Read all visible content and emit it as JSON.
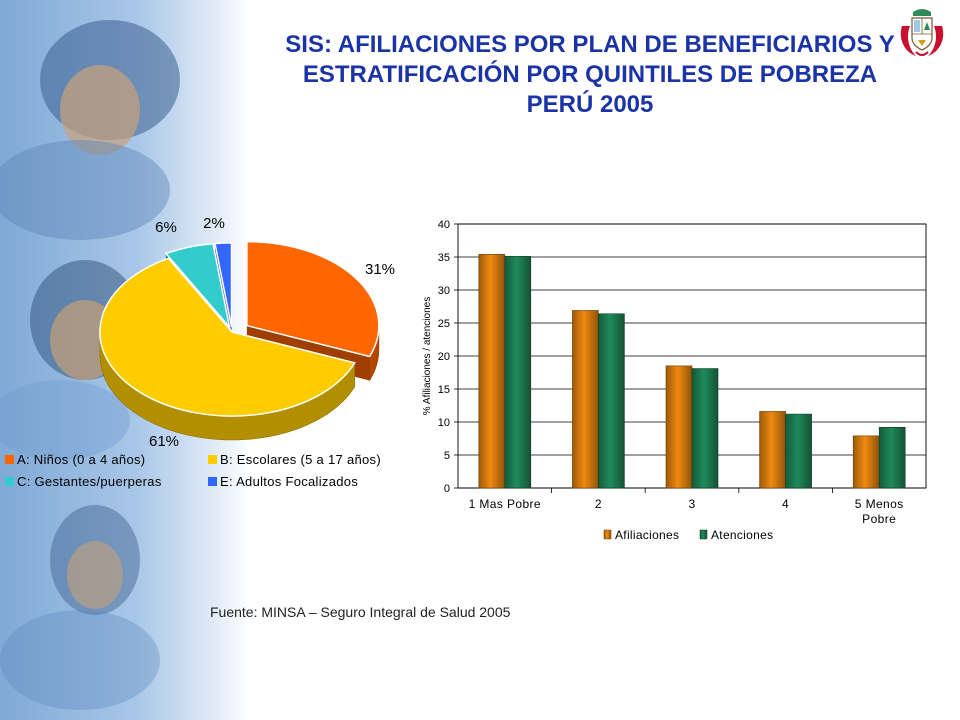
{
  "title": {
    "line1": "SIS: AFILIACIONES POR PLAN DE BENEFICIARIOS Y",
    "line2": "ESTRATIFICACIÓN POR QUINTILES DE POBREZA",
    "line3": "PERÚ 2005"
  },
  "source_note": "Fuente: MINSA – Seguro Integral de Salud  2005",
  "chart_data": [
    {
      "type": "pie",
      "categories": [
        "A: Niños (0 a 4 años)",
        "B: Escolares (5 a 17 años)",
        "C: Gestantes/puerperas",
        "E: Adultos Focalizados"
      ],
      "values": [
        31,
        61,
        6,
        2
      ],
      "data_labels": [
        "31%",
        "61%",
        "6%",
        "2%"
      ],
      "colors": [
        "#ff6600",
        "#ffcc00",
        "#33cccc",
        "#3366ff"
      ],
      "legend_position": "bottom",
      "three_d": true
    },
    {
      "type": "bar",
      "categories": [
        "1 Mas Pobre",
        "2",
        "3",
        "4",
        "5 Menos Pobre"
      ],
      "series": [
        {
          "name": "Afiliaciones",
          "values": [
            35.4,
            26.9,
            18.5,
            11.6,
            7.9
          ],
          "color": "#f08a10"
        },
        {
          "name": "Atenciones",
          "values": [
            35.1,
            26.4,
            18.1,
            11.2,
            9.2
          ],
          "color": "#1f8a5a"
        }
      ],
      "ylabel": "% Afiliaciones / atenciones",
      "ylim": [
        0,
        40
      ],
      "yticks": [
        0,
        5,
        10,
        15,
        20,
        25,
        30,
        35,
        40
      ],
      "grid": true,
      "legend_position": "bottom"
    }
  ]
}
